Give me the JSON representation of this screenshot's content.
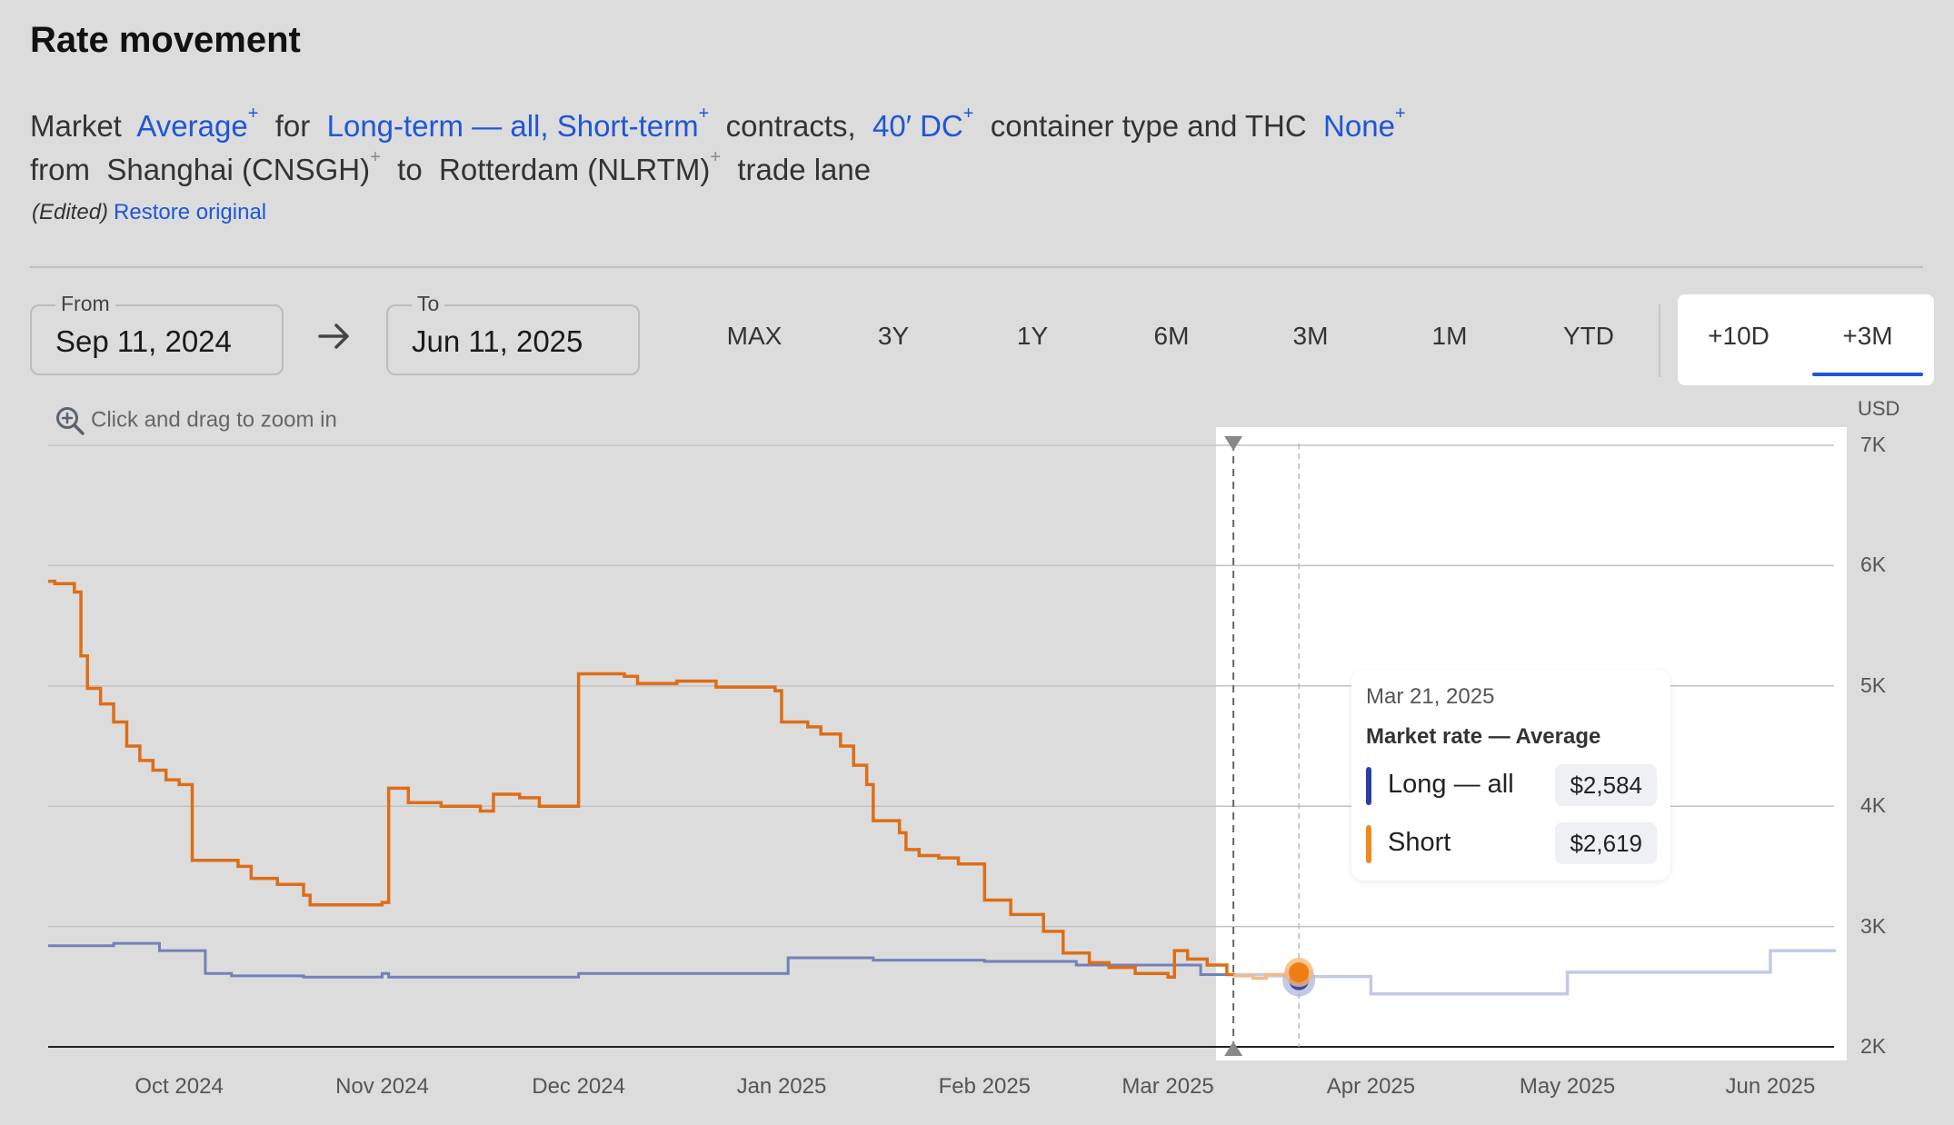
{
  "header": {
    "title": "Rate movement",
    "line1": {
      "t1": "Market",
      "metric": "Average",
      "t2": "for",
      "contracts": "Long-term — all, Short-term",
      "t3": "contracts,",
      "container": "40′ DC",
      "t4": "container type and THC",
      "thc": "None"
    },
    "line2": {
      "t1": "from",
      "origin": "Shanghai (CNSGH)",
      "t2": "to",
      "destination": "Rotterdam (NLRTM)",
      "t3": "trade lane"
    },
    "sup": "+",
    "edited": "(Edited)",
    "restore": "Restore original"
  },
  "date_range": {
    "from_label": "From",
    "from_value": "Sep 11, 2024",
    "to_label": "To",
    "to_value": "Jun 11, 2025"
  },
  "range_buttons": [
    "MAX",
    "3Y",
    "1Y",
    "6M",
    "3M",
    "1M",
    "YTD"
  ],
  "forecast_buttons": [
    "+10D",
    "+3M"
  ],
  "forecast_selected": "+3M",
  "zoom_hint": "Click and drag to zoom in",
  "tooltip": {
    "date": "Mar 21, 2025",
    "subtitle": "Market rate — Average",
    "rows": [
      {
        "name": "Long — all",
        "value": "$2,584",
        "color": "#2a3ea8"
      },
      {
        "name": "Short",
        "value": "$2,619",
        "color": "#f08a1c"
      }
    ]
  },
  "chart_data": {
    "type": "line",
    "ylabel": "USD",
    "ylim": [
      2000,
      7000
    ],
    "y_ticks": [
      "7K",
      "6K",
      "5K",
      "4K",
      "3K",
      "2K"
    ],
    "x_ticks": [
      "Oct 2024",
      "Nov 2024",
      "Dec 2024",
      "Jan 2025",
      "Feb 2025",
      "Mar 2025",
      "Apr 2025",
      "May 2025",
      "Jun 2025"
    ],
    "forecast_start": "2025-03-11",
    "series": [
      {
        "name": "Long — all",
        "color": "#7380b8",
        "forecast_color": "#c3c9e6",
        "points": [
          [
            "2024-09-11",
            2840
          ],
          [
            "2024-09-21",
            2860
          ],
          [
            "2024-09-28",
            2800
          ],
          [
            "2024-10-05",
            2610
          ],
          [
            "2024-10-09",
            2590
          ],
          [
            "2024-10-20",
            2580
          ],
          [
            "2024-11-01",
            2610
          ],
          [
            "2024-11-02",
            2580
          ],
          [
            "2024-11-15",
            2580
          ],
          [
            "2024-12-01",
            2610
          ],
          [
            "2024-12-15",
            2610
          ],
          [
            "2025-01-01",
            2610
          ],
          [
            "2025-01-02",
            2740
          ],
          [
            "2025-01-15",
            2720
          ],
          [
            "2025-02-01",
            2710
          ],
          [
            "2025-02-15",
            2680
          ],
          [
            "2025-02-23",
            2680
          ],
          [
            "2025-03-06",
            2600
          ],
          [
            "2025-03-11",
            2600
          ],
          [
            "2025-03-16",
            2590
          ],
          [
            "2025-03-21",
            2584
          ],
          [
            "2025-04-01",
            2584
          ],
          [
            "2025-04-01",
            2440
          ],
          [
            "2025-05-01",
            2440
          ],
          [
            "2025-05-01",
            2620
          ],
          [
            "2025-06-01",
            2620
          ],
          [
            "2025-06-01",
            2800
          ],
          [
            "2025-06-11",
            2800
          ]
        ]
      },
      {
        "name": "Short",
        "color": "#de6d17",
        "forecast_color": "#f2bb84",
        "points": [
          [
            "2024-09-11",
            5870
          ],
          [
            "2024-09-12",
            5850
          ],
          [
            "2024-09-15",
            5780
          ],
          [
            "2024-09-16",
            5250
          ],
          [
            "2024-09-17",
            4980
          ],
          [
            "2024-09-19",
            4850
          ],
          [
            "2024-09-21",
            4700
          ],
          [
            "2024-09-23",
            4500
          ],
          [
            "2024-09-25",
            4380
          ],
          [
            "2024-09-27",
            4300
          ],
          [
            "2024-09-29",
            4220
          ],
          [
            "2024-10-01",
            4180
          ],
          [
            "2024-10-03",
            3550
          ],
          [
            "2024-10-10",
            3500
          ],
          [
            "2024-10-12",
            3400
          ],
          [
            "2024-10-16",
            3350
          ],
          [
            "2024-10-20",
            3260
          ],
          [
            "2024-10-21",
            3180
          ],
          [
            "2024-10-28",
            3180
          ],
          [
            "2024-11-01",
            3200
          ],
          [
            "2024-11-02",
            4150
          ],
          [
            "2024-11-05",
            4030
          ],
          [
            "2024-11-10",
            4000
          ],
          [
            "2024-11-14",
            4000
          ],
          [
            "2024-11-16",
            3960
          ],
          [
            "2024-11-18",
            4100
          ],
          [
            "2024-11-22",
            4070
          ],
          [
            "2024-11-25",
            4000
          ],
          [
            "2024-11-30",
            4000
          ],
          [
            "2024-12-01",
            5100
          ],
          [
            "2024-12-08",
            5080
          ],
          [
            "2024-12-10",
            5020
          ],
          [
            "2024-12-16",
            5040
          ],
          [
            "2024-12-22",
            4990
          ],
          [
            "2024-12-31",
            4960
          ],
          [
            "2025-01-01",
            4700
          ],
          [
            "2025-01-05",
            4660
          ],
          [
            "2025-01-07",
            4600
          ],
          [
            "2025-01-10",
            4500
          ],
          [
            "2025-01-12",
            4340
          ],
          [
            "2025-01-14",
            4180
          ],
          [
            "2025-01-15",
            3880
          ],
          [
            "2025-01-19",
            3780
          ],
          [
            "2025-01-20",
            3640
          ],
          [
            "2025-01-22",
            3590
          ],
          [
            "2025-01-25",
            3570
          ],
          [
            "2025-01-28",
            3520
          ],
          [
            "2025-02-01",
            3220
          ],
          [
            "2025-02-05",
            3100
          ],
          [
            "2025-02-10",
            2960
          ],
          [
            "2025-02-13",
            2780
          ],
          [
            "2025-02-17",
            2700
          ],
          [
            "2025-02-20",
            2660
          ],
          [
            "2025-02-24",
            2610
          ],
          [
            "2025-03-01",
            2580
          ],
          [
            "2025-03-02",
            2800
          ],
          [
            "2025-03-04",
            2730
          ],
          [
            "2025-03-07",
            2680
          ],
          [
            "2025-03-10",
            2600
          ],
          [
            "2025-03-11",
            2590
          ],
          [
            "2025-03-14",
            2570
          ],
          [
            "2025-03-16",
            2600
          ],
          [
            "2025-03-21",
            2619
          ]
        ]
      }
    ]
  }
}
